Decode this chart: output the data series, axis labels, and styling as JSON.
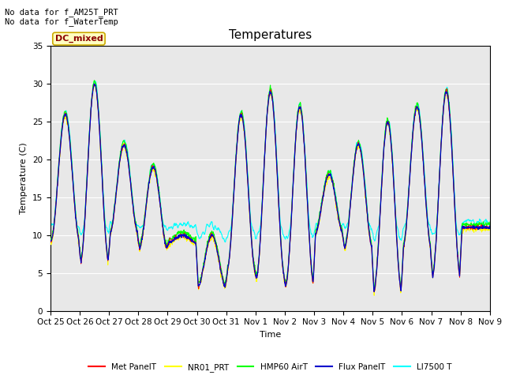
{
  "title": "Temperatures",
  "xlabel": "Time",
  "ylabel": "Temperature (C)",
  "ylim": [
    0,
    35
  ],
  "yticks": [
    0,
    5,
    10,
    15,
    20,
    25,
    30,
    35
  ],
  "x_labels": [
    "Oct 25",
    "Oct 26",
    "Oct 27",
    "Oct 28",
    "Oct 29",
    "Oct 30",
    "Oct 31",
    "Nov 1",
    "Nov 2",
    "Nov 3",
    "Nov 4",
    "Nov 5",
    "Nov 6",
    "Nov 7",
    "Nov 8",
    "Nov 9"
  ],
  "annotation_text": "No data for f_AM25T_PRT\nNo data for f_WaterTemp",
  "legend_label": "DC_mixed",
  "series_colors": [
    "#ff0000",
    "#ffff00",
    "#00ff00",
    "#0000cc",
    "#00ffff"
  ],
  "series_labels": [
    "Met PanelT",
    "NR01_PRT",
    "HMP60 AirT",
    "Flux PanelT",
    "LI7500 T"
  ],
  "background_color": "#e8e8e8",
  "title_fontsize": 11,
  "axis_fontsize": 8,
  "tick_fontsize": 7.5
}
